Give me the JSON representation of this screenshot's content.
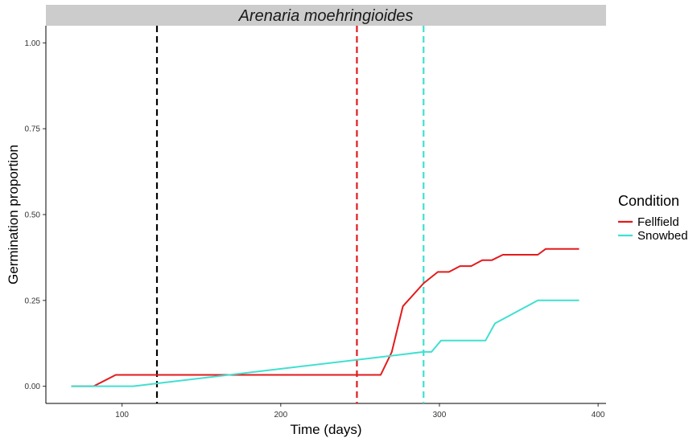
{
  "chart_data": {
    "type": "line",
    "title": "Arenaria moehringioides",
    "xlabel": "Time (days)",
    "ylabel": "Germination proportion",
    "xlim": [
      52,
      405
    ],
    "ylim": [
      -0.05,
      1.05
    ],
    "x_ticks": [
      100,
      200,
      300,
      400
    ],
    "y_ticks": [
      0.0,
      0.25,
      0.5,
      0.75,
      1.0
    ],
    "x_tick_labels": [
      "100",
      "200",
      "300",
      "400"
    ],
    "y_tick_labels": [
      "0.00",
      "0.25",
      "0.50",
      "0.75",
      "1.00"
    ],
    "legend": {
      "title": "Condition",
      "placement": "right",
      "entries": [
        "Fellfield",
        "Snowbed"
      ]
    },
    "grid": false,
    "series": [
      {
        "name": "Fellfield",
        "color": "#E31A1C",
        "points": [
          [
            68,
            0.0
          ],
          [
            82,
            0.0
          ],
          [
            96,
            0.033
          ],
          [
            263,
            0.033
          ],
          [
            270,
            0.1
          ],
          [
            277,
            0.233
          ],
          [
            290,
            0.3
          ],
          [
            299,
            0.333
          ],
          [
            306,
            0.333
          ],
          [
            313,
            0.35
          ],
          [
            320,
            0.35
          ],
          [
            327,
            0.367
          ],
          [
            333,
            0.367
          ],
          [
            340,
            0.383
          ],
          [
            362,
            0.383
          ],
          [
            367,
            0.4
          ],
          [
            388,
            0.4
          ]
        ]
      },
      {
        "name": "Snowbed",
        "color": "#40E0D0",
        "points": [
          [
            68,
            0.0
          ],
          [
            107,
            0.0
          ],
          [
            290,
            0.1
          ],
          [
            295,
            0.1
          ],
          [
            301,
            0.133
          ],
          [
            329,
            0.133
          ],
          [
            335,
            0.183
          ],
          [
            362,
            0.25
          ],
          [
            388,
            0.25
          ]
        ]
      }
    ],
    "vlines": [
      {
        "x": 122,
        "color": "#000000"
      },
      {
        "x": 248,
        "color": "#E31A1C"
      },
      {
        "x": 290,
        "color": "#40E0D0"
      }
    ]
  }
}
